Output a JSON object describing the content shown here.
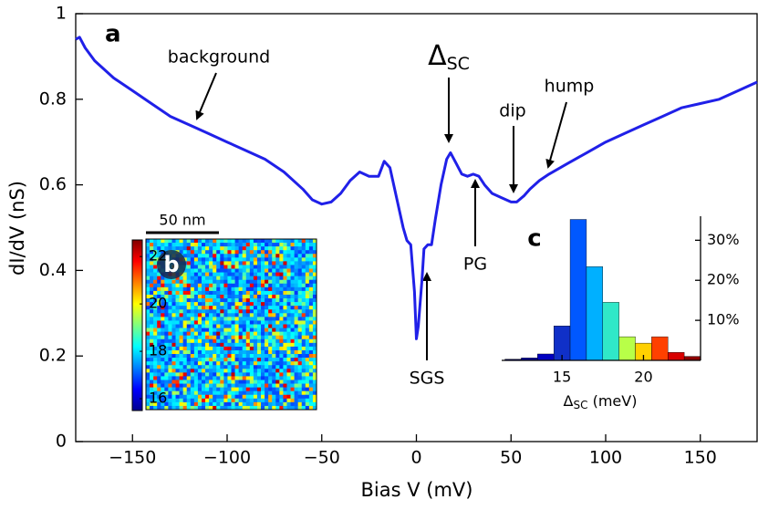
{
  "chart_data": [
    {
      "type": "line",
      "panel_label": "a",
      "xlabel": "Bias V (mV)",
      "ylabel": "dI/dV (nS)",
      "x": [
        -180,
        -178,
        -175,
        -170,
        -160,
        -150,
        -140,
        -130,
        -120,
        -110,
        -100,
        -90,
        -80,
        -70,
        -60,
        -55,
        -50,
        -45,
        -40,
        -35,
        -30,
        -25,
        -20,
        -17,
        -14,
        -10,
        -7,
        -5,
        -3,
        -1,
        0,
        1,
        3,
        4,
        6,
        8,
        10,
        13,
        16,
        18,
        21,
        24,
        27,
        30,
        33,
        36,
        40,
        45,
        50,
        53,
        57,
        60,
        65,
        70,
        80,
        90,
        100,
        110,
        120,
        130,
        140,
        150,
        160,
        170,
        180
      ],
      "series": [
        {
          "name": "dI/dV",
          "color": "#2020e8",
          "values": [
            0.94,
            0.945,
            0.92,
            0.89,
            0.85,
            0.82,
            0.79,
            0.76,
            0.74,
            0.72,
            0.7,
            0.68,
            0.66,
            0.63,
            0.59,
            0.565,
            0.555,
            0.56,
            0.58,
            0.61,
            0.63,
            0.62,
            0.62,
            0.655,
            0.64,
            0.56,
            0.5,
            0.47,
            0.46,
            0.35,
            0.24,
            0.27,
            0.38,
            0.45,
            0.46,
            0.46,
            0.52,
            0.6,
            0.66,
            0.675,
            0.65,
            0.625,
            0.62,
            0.625,
            0.62,
            0.6,
            0.58,
            0.57,
            0.56,
            0.56,
            0.575,
            0.59,
            0.61,
            0.625,
            0.65,
            0.675,
            0.7,
            0.72,
            0.74,
            0.76,
            0.78,
            0.79,
            0.8,
            0.82,
            0.84
          ]
        }
      ],
      "xlim": [
        -180,
        180
      ],
      "xticks": [
        {
          "value": -150,
          "label": "−150"
        },
        {
          "value": -100,
          "label": "−100"
        },
        {
          "value": -50,
          "label": "−50"
        },
        0,
        50,
        100,
        150
      ],
      "ylim": [
        0,
        1
      ],
      "yticks": [
        0,
        0.2,
        0.4,
        0.6,
        0.8,
        1
      ],
      "annotations": [
        "background",
        {
          "symbol": "Δ",
          "sub": "SC"
        },
        "dip",
        "hump",
        "PG",
        "SGS"
      ]
    },
    {
      "type": "heatmap",
      "panel_label": "b",
      "scale_bar": "50 nm",
      "clim": [
        15.5,
        22.7
      ],
      "colorbar_ticks": [
        16,
        18,
        20,
        22
      ]
    },
    {
      "type": "histogram",
      "panel_label": "c",
      "xlabel": {
        "symbol": "Δ",
        "sub": "SC",
        "unit": " (meV)"
      },
      "bins": [
        11.5,
        12.5,
        13.5,
        14.5,
        15.5,
        16.5,
        17.5,
        18.5,
        19.5,
        20.5,
        21.5,
        22.5,
        23.5
      ],
      "values": [
        0.3,
        0.6,
        1.6,
        8.6,
        35.2,
        23.4,
        14.5,
        5.9,
        4.3,
        5.9,
        2,
        1
      ],
      "colors": [
        "#00007a",
        "#000096",
        "#0000c0",
        "#1030c8",
        "#0058ff",
        "#00b0ff",
        "#30e8c8",
        "#b8ff48",
        "#ffd000",
        "#ff4000",
        "#d80000",
        "#8c0000"
      ],
      "xlim": [
        11.3,
        23.5
      ],
      "xticks": [
        15,
        20
      ],
      "ylim": [
        0,
        36
      ],
      "yticks": [
        {
          "value": 10,
          "label": "10%"
        },
        {
          "value": 20,
          "label": "20%"
        },
        {
          "value": 30,
          "label": "30%"
        }
      ]
    }
  ]
}
